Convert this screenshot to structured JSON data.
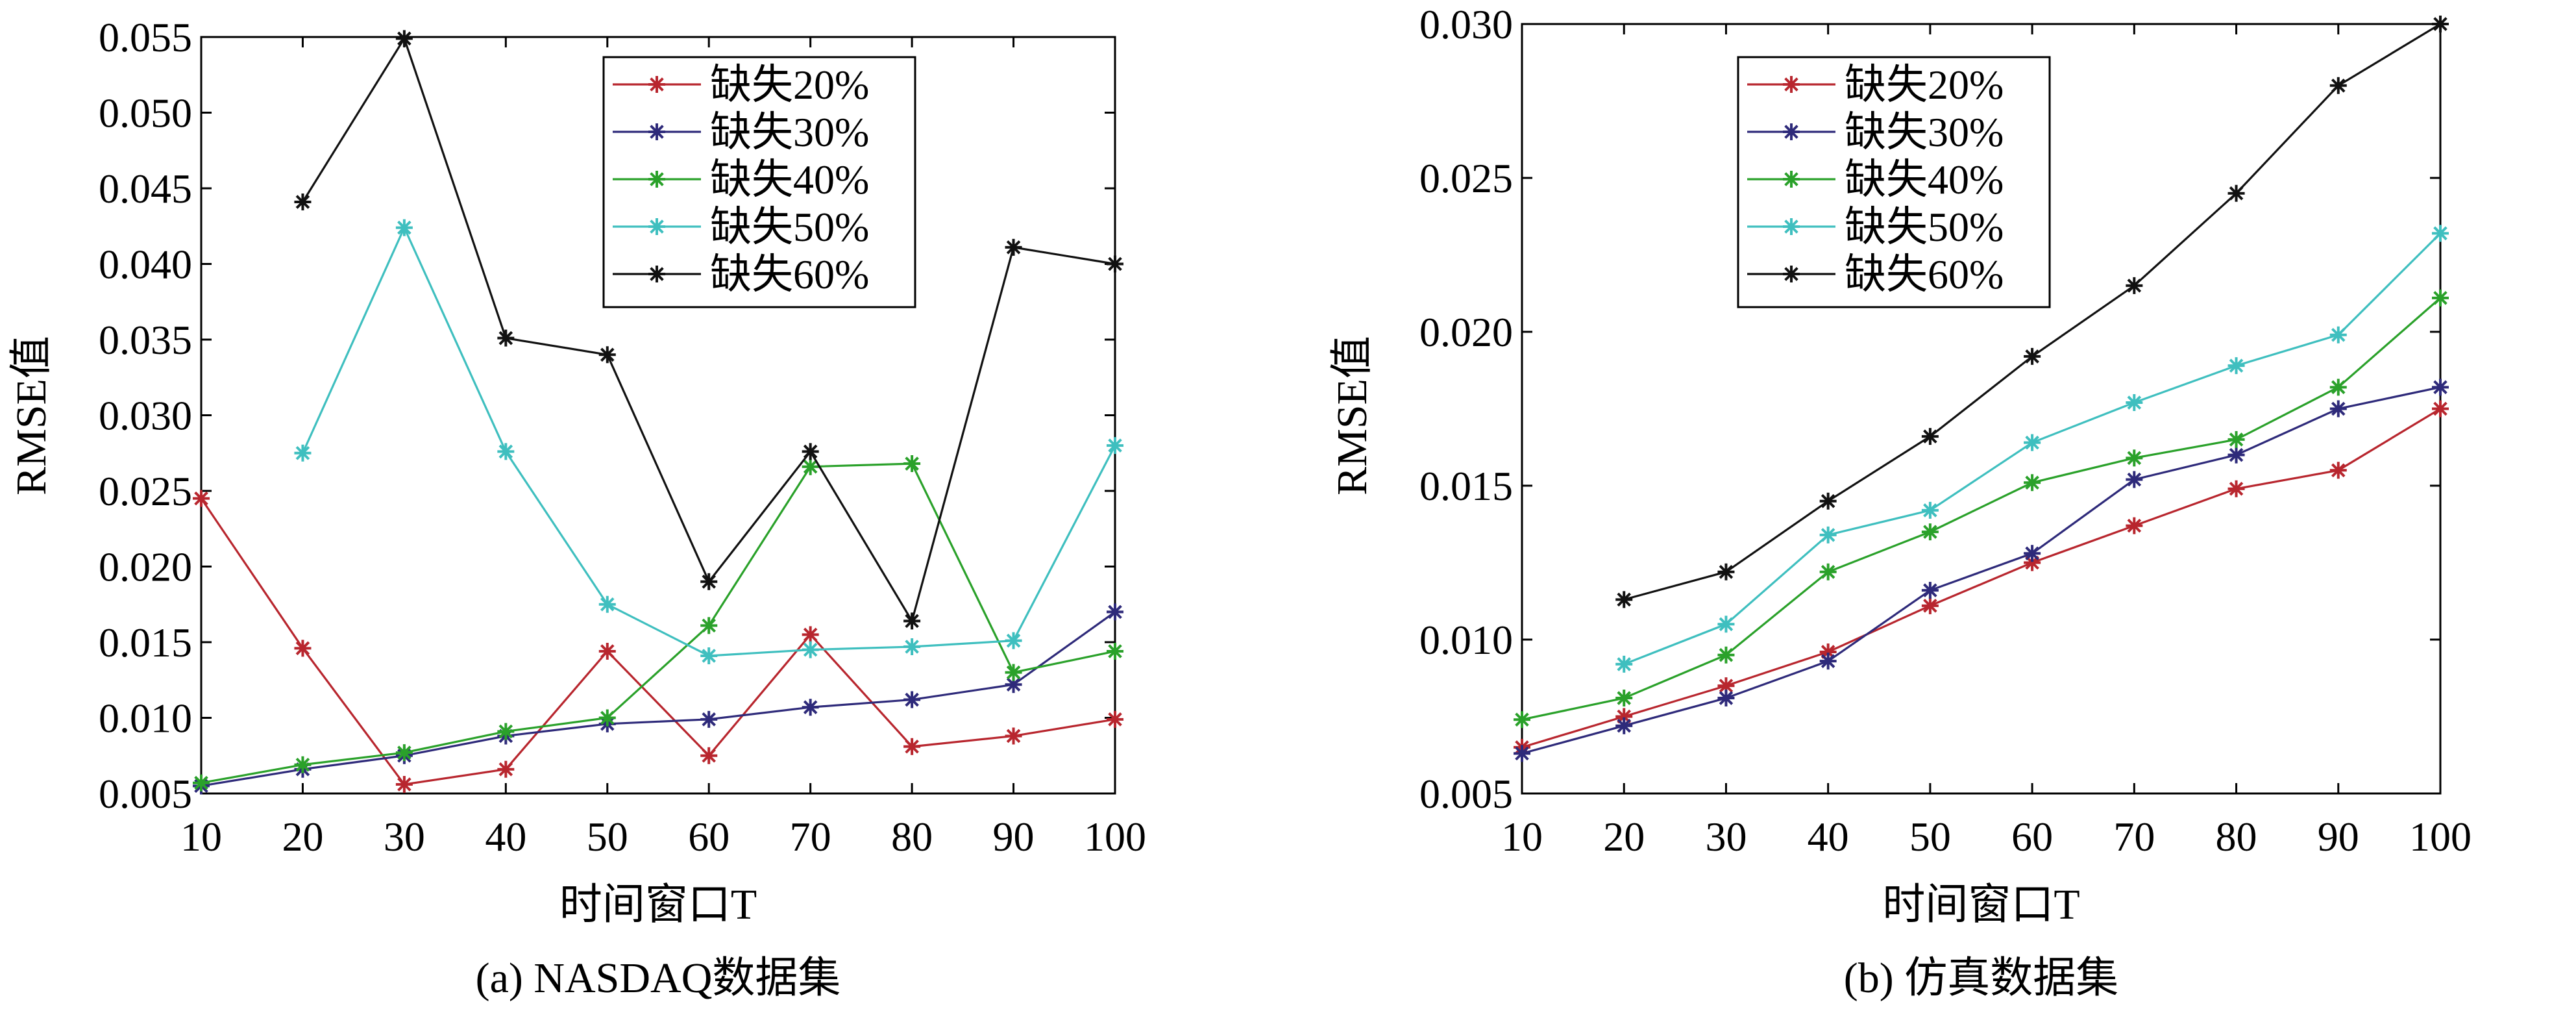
{
  "chart_data": [
    {
      "type": "line",
      "caption": "(a) NASDAQ数据集",
      "xlabel": "时间窗口T",
      "ylabel": "RMSE值",
      "x": [
        10,
        20,
        30,
        40,
        50,
        60,
        70,
        80,
        90,
        100
      ],
      "xlim": [
        10,
        100
      ],
      "ylim": [
        0.005,
        0.055
      ],
      "yticks": [
        "0.005",
        "0.010",
        "0.015",
        "0.020",
        "0.025",
        "0.030",
        "0.035",
        "0.040",
        "0.045",
        "0.050",
        "0.055"
      ],
      "legend_position": "top-right",
      "series": [
        {
          "name": "缺失20%",
          "color": "#b8262e",
          "values": [
            0.0245,
            0.0146,
            0.0056,
            0.0066,
            0.0144,
            0.0075,
            0.0155,
            0.0081,
            0.0088,
            0.0099
          ]
        },
        {
          "name": "缺失30%",
          "color": "#2e2a7a",
          "values": [
            0.0055,
            0.0066,
            0.0075,
            0.0088,
            0.0096,
            0.0099,
            0.0107,
            0.0112,
            0.0122,
            0.017
          ]
        },
        {
          "name": "缺失40%",
          "color": "#2aa12a",
          "values": [
            0.0057,
            0.0069,
            0.0077,
            0.0091,
            0.01,
            0.0161,
            0.0266,
            0.0268,
            0.013,
            0.0144
          ]
        },
        {
          "name": "缺失50%",
          "color": "#3fbfbf",
          "values": [
            null,
            0.0275,
            0.0424,
            0.0276,
            0.0175,
            0.0141,
            0.0145,
            0.0147,
            0.0151,
            0.028
          ]
        },
        {
          "name": "缺失60%",
          "color": "#111111",
          "values": [
            null,
            0.0441,
            0.0549,
            0.0351,
            0.034,
            0.019,
            0.0276,
            0.0164,
            0.0411,
            0.04
          ]
        }
      ]
    },
    {
      "type": "line",
      "caption": "(b) 仿真数据集",
      "xlabel": "时间窗口T",
      "ylabel": "RMSE值",
      "x": [
        10,
        20,
        30,
        40,
        50,
        60,
        70,
        80,
        90,
        100
      ],
      "xlim": [
        10,
        100
      ],
      "ylim": [
        0.005,
        0.03
      ],
      "yticks": [
        "0.005",
        "0.010",
        "0.015",
        "0.020",
        "0.025",
        "0.030"
      ],
      "legend_position": "top-left",
      "series": [
        {
          "name": "缺失20%",
          "color": "#b8262e",
          "values": [
            0.0065,
            0.0075,
            0.0085,
            0.0096,
            0.0111,
            0.0125,
            0.0137,
            0.0149,
            0.0155,
            0.0175
          ]
        },
        {
          "name": "缺失30%",
          "color": "#2e2a7a",
          "values": [
            0.0063,
            0.0072,
            0.0081,
            0.0093,
            0.0116,
            0.0128,
            0.0152,
            0.016,
            0.0175,
            0.0182
          ]
        },
        {
          "name": "缺失40%",
          "color": "#2aa12a",
          "values": [
            0.0074,
            0.0081,
            0.0095,
            0.0122,
            0.0135,
            0.0151,
            0.0159,
            0.0165,
            0.0182,
            0.0211
          ]
        },
        {
          "name": "缺失50%",
          "color": "#3fbfbf",
          "values": [
            null,
            0.0092,
            0.0105,
            0.0134,
            0.0142,
            0.0164,
            0.0177,
            0.0189,
            0.0199,
            0.0232
          ]
        },
        {
          "name": "缺失60%",
          "color": "#111111",
          "values": [
            null,
            0.0113,
            0.0122,
            0.0145,
            0.0166,
            0.0192,
            0.0215,
            0.0245,
            0.028,
            0.03
          ]
        }
      ]
    }
  ]
}
